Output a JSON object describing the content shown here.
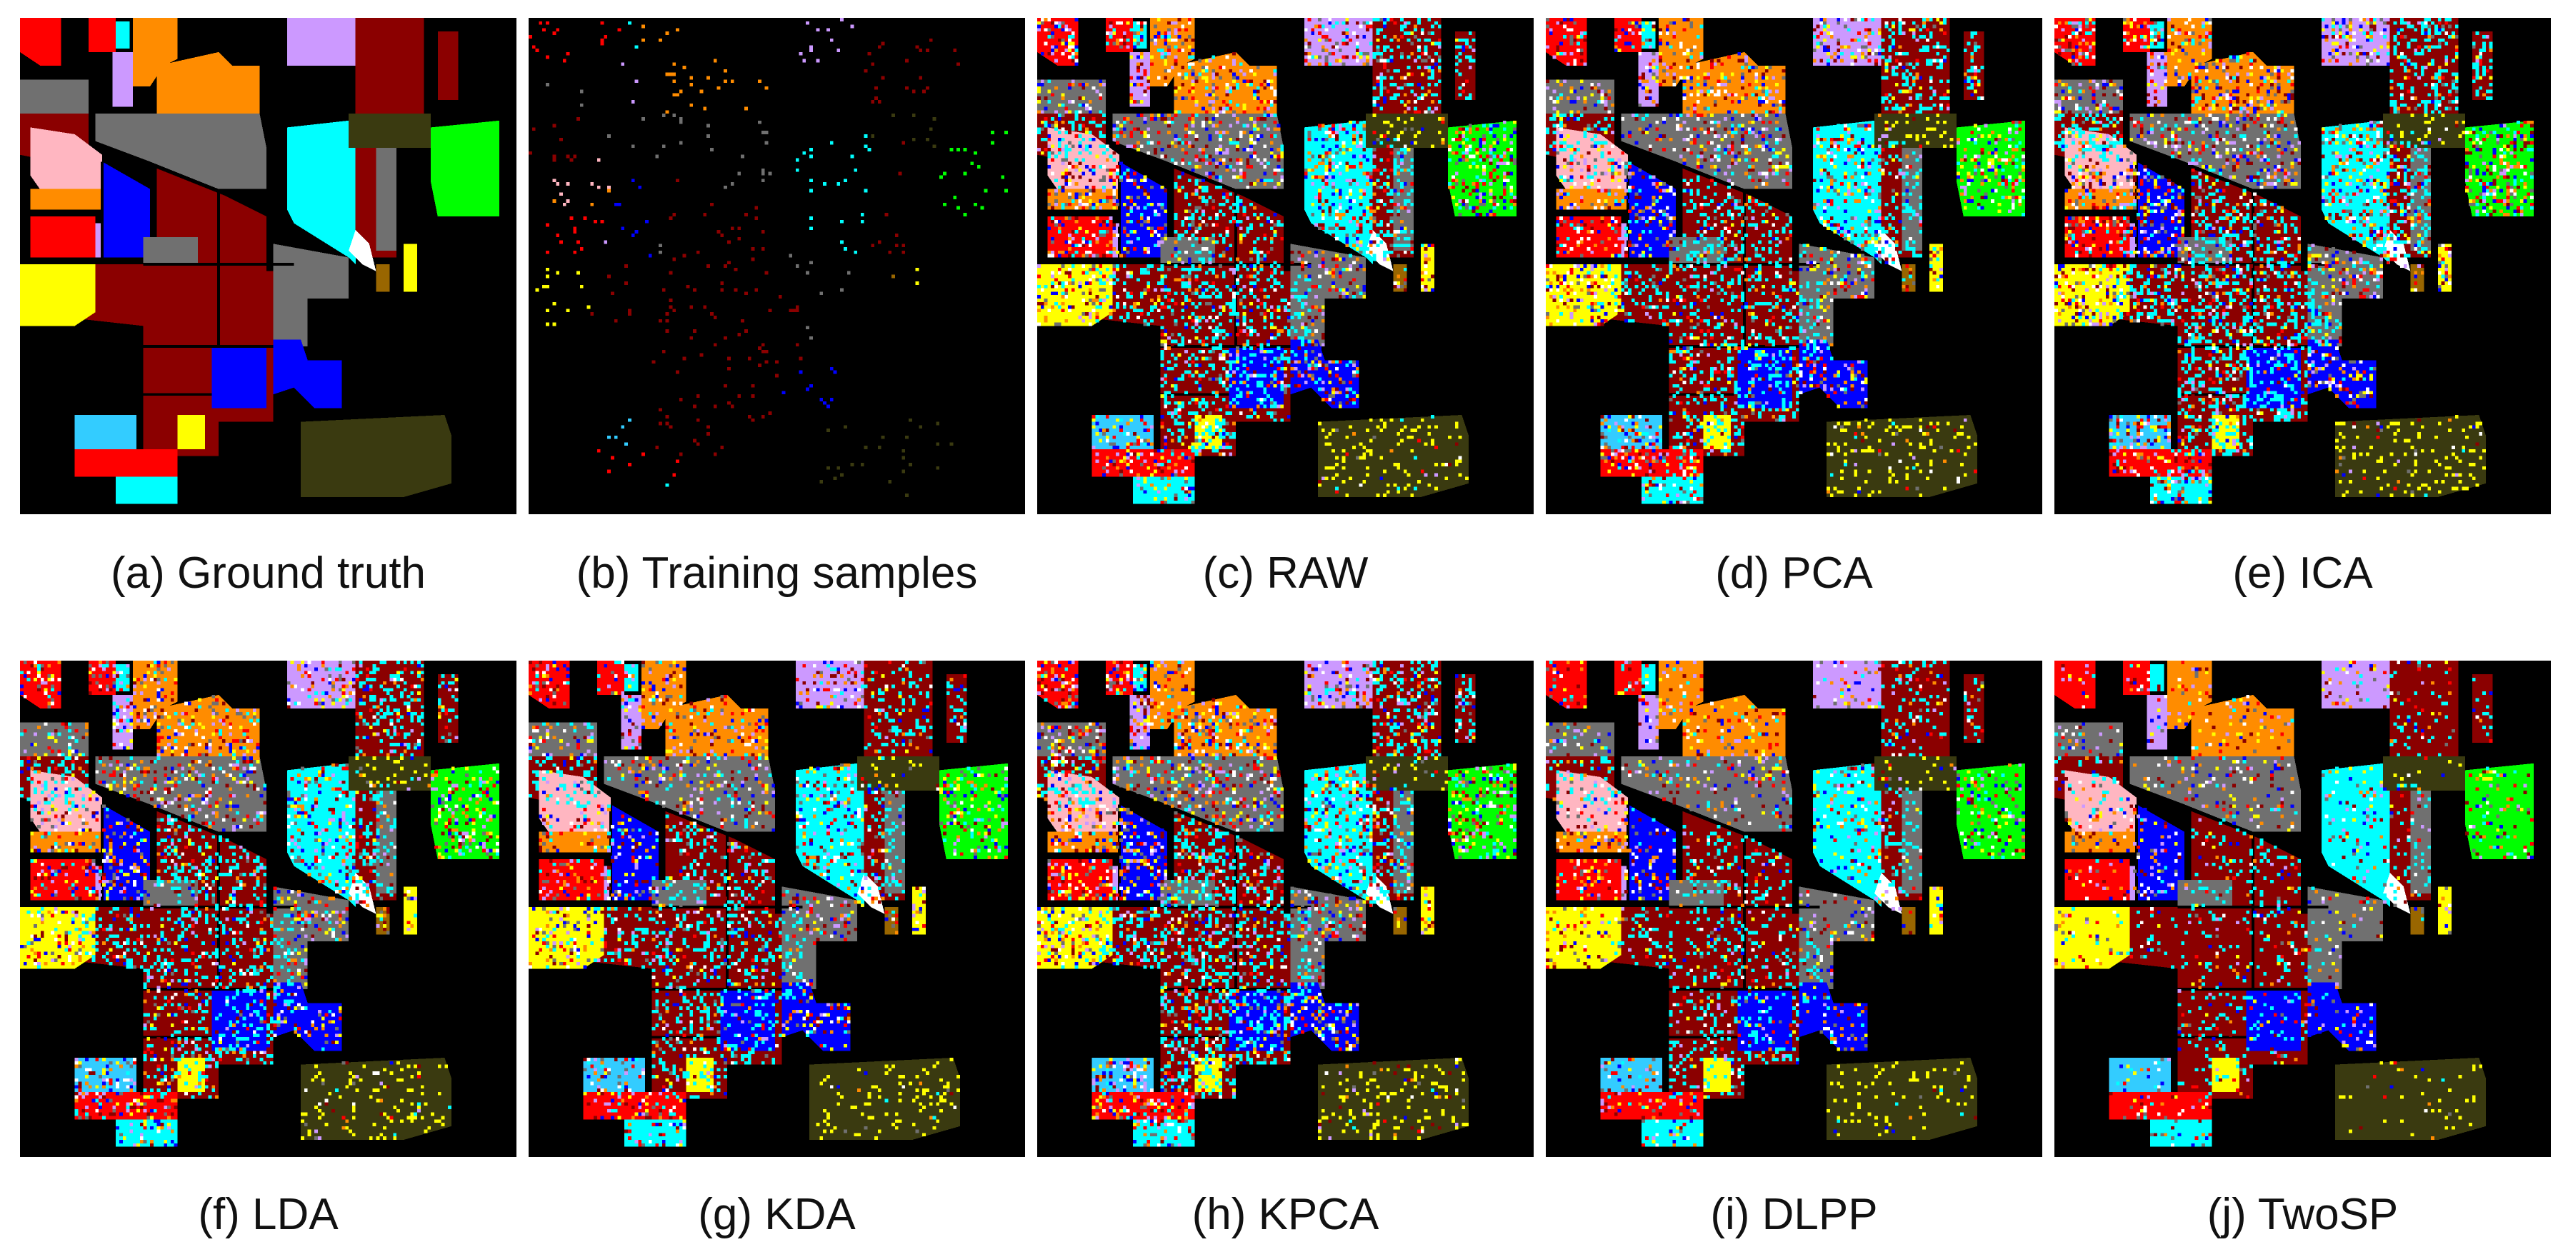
{
  "figure": {
    "panels": [
      {
        "id": "a",
        "caption": "(a) Ground truth",
        "kind": "ground-truth"
      },
      {
        "id": "b",
        "caption": "(b) Training samples",
        "kind": "training-samples"
      },
      {
        "id": "c",
        "caption": "(c) RAW",
        "kind": "classification-map"
      },
      {
        "id": "d",
        "caption": "(d) PCA",
        "kind": "classification-map"
      },
      {
        "id": "e",
        "caption": "(e) ICA",
        "kind": "classification-map"
      },
      {
        "id": "f",
        "caption": "(f) LDA",
        "kind": "classification-map"
      },
      {
        "id": "g",
        "caption": "(g) KDA",
        "kind": "classification-map"
      },
      {
        "id": "h",
        "caption": "(h) KPCA",
        "kind": "classification-map"
      },
      {
        "id": "i",
        "caption": "(i) DLPP",
        "kind": "classification-map"
      },
      {
        "id": "j",
        "caption": "(j) TwoSP",
        "kind": "classification-map"
      }
    ]
  },
  "class_colors": {
    "background": "#000000",
    "red": "#ff0000",
    "maroon": "#8b0000",
    "orange": "#ff8c00",
    "lavender": "#cc99ff",
    "gray": "#707070",
    "pink": "#ffb6c1",
    "blue": "#0000ff",
    "cyan": "#00ffff",
    "sky": "#33ccff",
    "yellow": "#ffff00",
    "green": "#00ff00",
    "olive": "#3a3a10",
    "white": "#ffffff",
    "brown": "#996600"
  }
}
